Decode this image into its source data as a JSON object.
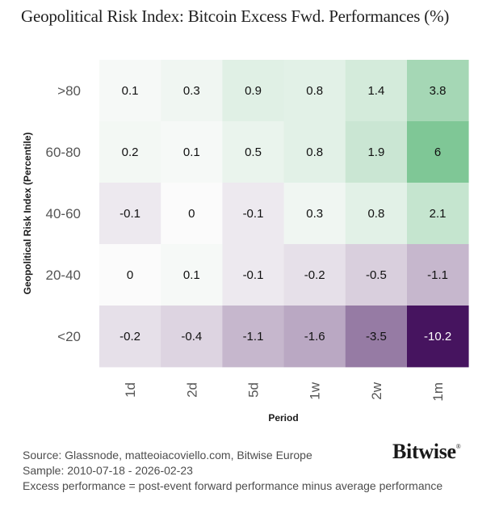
{
  "chart_data": {
    "type": "heatmap",
    "title": "Geopolitical Risk Index: Bitcoin Excess Fwd. Performances (%)",
    "xlabel": "Period",
    "ylabel": "Geopolitical Risk Index (Percentile)",
    "x_categories": [
      "1d",
      "2d",
      "5d",
      "1w",
      "2w",
      "1m"
    ],
    "y_categories": [
      ">80",
      "60-80",
      "40-60",
      "20-40",
      "<20"
    ],
    "values": [
      [
        0.1,
        0.3,
        0.9,
        0.8,
        1.4,
        3.8
      ],
      [
        0.2,
        0.1,
        0.5,
        0.8,
        1.9,
        6
      ],
      [
        -0.1,
        0,
        -0.1,
        0.3,
        0.8,
        2.1
      ],
      [
        0,
        0.1,
        -0.1,
        -0.2,
        -0.5,
        -1.1
      ],
      [
        -0.2,
        -0.4,
        -1.1,
        -1.6,
        -3.5,
        -10.2
      ]
    ],
    "colors": {
      "positive": "#7fc796",
      "negative": "#46145f",
      "neutral": "#fbfbfb",
      "text_dark": "#111111",
      "text_light": "#ffffff"
    }
  },
  "footer": {
    "source": "Source: Glassnode, matteoiacoviello.com, Bitwise Europe",
    "sample": "Sample: 2010-07-18 - 2026-02-23",
    "note": "Excess performance = post-event forward performance minus average performance"
  },
  "brand": {
    "name": "Bitwise",
    "mark": "®"
  }
}
